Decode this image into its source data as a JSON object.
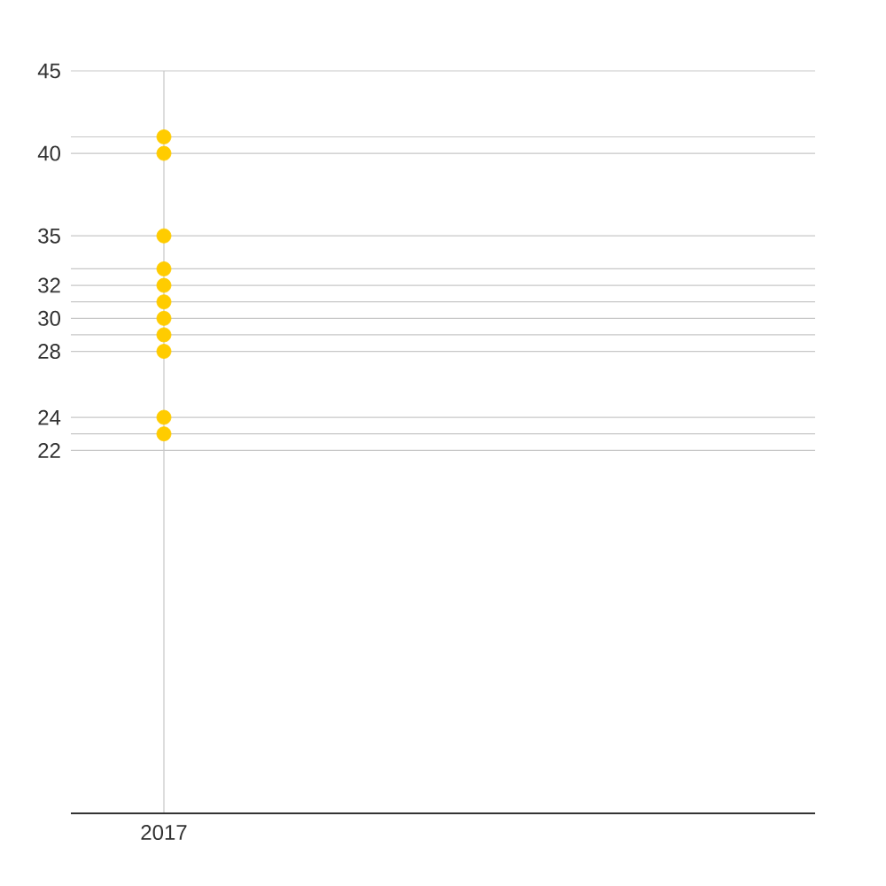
{
  "chart_data": {
    "type": "scatter",
    "categories": [
      "2017"
    ],
    "series": [
      {
        "values": [
          41
        ],
        "color": "#ffcc00"
      },
      {
        "values": [
          40
        ],
        "color": "#ffcc00"
      },
      {
        "values": [
          35
        ],
        "color": "#ffcc00"
      },
      {
        "values": [
          33
        ],
        "color": "#ffcc00"
      },
      {
        "values": [
          32
        ],
        "color": "#ffcc00"
      },
      {
        "values": [
          31
        ],
        "color": "#ffcc00"
      },
      {
        "values": [
          30
        ],
        "color": "#ffcc00"
      },
      {
        "values": [
          29
        ],
        "color": "#ffcc00"
      },
      {
        "values": [
          28
        ],
        "color": "#ffcc00"
      },
      {
        "values": [
          24
        ],
        "color": "#ffcc00"
      },
      {
        "values": [
          23
        ],
        "color": "#ffcc00"
      }
    ],
    "ylim": [
      0,
      45
    ],
    "yticks": [
      22,
      {
        "value": 23,
        "label": null
      },
      24,
      28,
      {
        "value": 29,
        "label": null
      },
      30,
      {
        "value": 31,
        "label": null
      },
      32,
      {
        "value": 33,
        "label": null
      },
      35,
      40,
      {
        "value": 41,
        "label": null
      },
      45
    ],
    "grid": true
  }
}
